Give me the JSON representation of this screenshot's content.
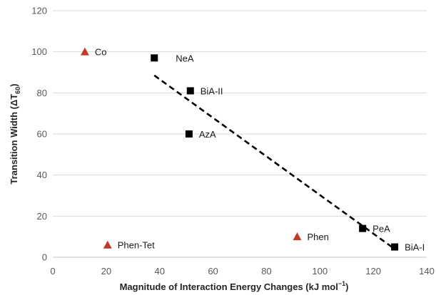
{
  "chart_data": {
    "type": "scatter",
    "xlabel": "Magnitude of Interaction Energy Changes  (kJ mol",
    "xlabel_sup": "−1",
    "xlabel_tail": ")",
    "ylabel": "Transition Width (ΔT",
    "ylabel_sub": "60",
    "ylabel_tail": ")",
    "xlim": [
      0,
      140
    ],
    "ylim": [
      0,
      120
    ],
    "x_ticks": [
      "0",
      "20",
      "40",
      "60",
      "80",
      "100",
      "120",
      "140"
    ],
    "y_ticks": [
      "0",
      "20",
      "40",
      "60",
      "80",
      "100",
      "120"
    ],
    "grid": "horizontal",
    "series": [
      {
        "marker": "square",
        "color": "#000000",
        "points": [
          {
            "label": "NeA",
            "x": 38,
            "y": 97
          },
          {
            "label": "BiA-II",
            "x": 51.5,
            "y": 81
          },
          {
            "label": "AzA",
            "x": 51,
            "y": 60
          },
          {
            "label": "PeA",
            "x": 116,
            "y": 14
          },
          {
            "label": "BiA-I",
            "x": 128,
            "y": 5
          }
        ]
      },
      {
        "marker": "triangle",
        "color": "#c0392b",
        "points": [
          {
            "label": "Co",
            "x": 12,
            "y": 100
          },
          {
            "label": "Phen-Tet",
            "x": 20.5,
            "y": 6
          },
          {
            "label": "Phen",
            "x": 91.5,
            "y": 10
          }
        ]
      }
    ],
    "trendline": {
      "style": "dashed",
      "x": [
        38,
        128
      ],
      "y": [
        88.5,
        4
      ]
    }
  }
}
